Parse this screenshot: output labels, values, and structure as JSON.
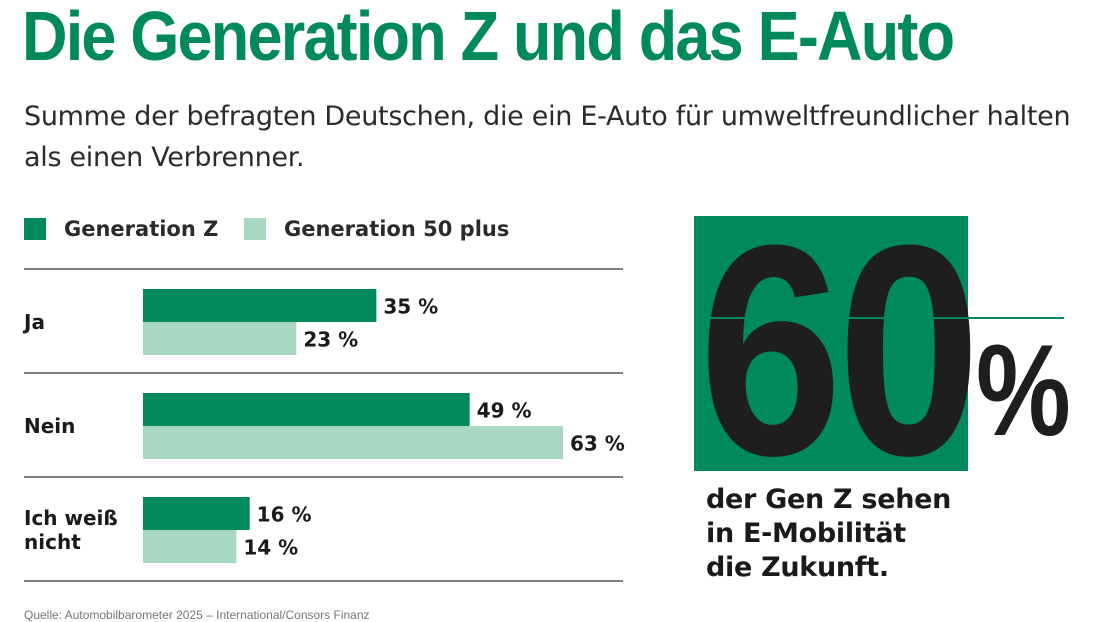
{
  "title": "Die Generation Z und das E-Auto",
  "subtitle": "Summe der befragten Deutschen, die ein E-Auto für umweltfreundlicher halten als einen Verbrenner.",
  "colors": {
    "primary_green": "#00895a",
    "light_green": "#a8d8c2",
    "text_dark": "#1e1e1e",
    "rule": "#333333"
  },
  "chart_data": {
    "type": "bar",
    "orientation": "horizontal",
    "categories": [
      "Ja",
      "Nein",
      "Ich weiß nicht"
    ],
    "category_lines": [
      [
        "Ja"
      ],
      [
        "Nein"
      ],
      [
        "Ich weiß",
        "nicht"
      ]
    ],
    "series": [
      {
        "name": "Generation Z",
        "values": [
          35,
          49,
          16
        ],
        "labels": [
          "35 %",
          "49 %",
          "16 %"
        ],
        "color": "#00895a"
      },
      {
        "name": "Generation 50 plus",
        "values": [
          23,
          63,
          14
        ],
        "labels": [
          "23 %",
          "63 %",
          "14 %"
        ],
        "color": "#a8d8c2"
      }
    ],
    "xlim": [
      0,
      63
    ],
    "legend_position": "top-left",
    "grid": false
  },
  "highlight": {
    "number": "60",
    "unit": "%",
    "caption_lines": [
      "der Gen Z sehen",
      "in E-Mobilität",
      "die Zukunft."
    ]
  },
  "source": "Quelle: Automobilbarometer 2025 – International/Consors Finanz"
}
